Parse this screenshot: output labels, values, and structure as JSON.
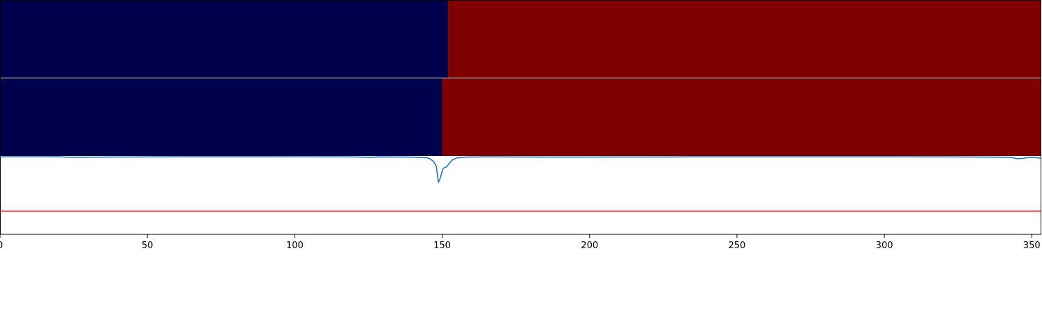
{
  "chart_data": [
    {
      "type": "heatmap",
      "row": 1,
      "x_domain": [
        0,
        353
      ],
      "segments": [
        {
          "x_start": 0,
          "x_end": 152,
          "color": "#00004c"
        },
        {
          "x_start": 152,
          "x_end": 353,
          "color": "#7f0000"
        }
      ]
    },
    {
      "type": "heatmap",
      "row": 2,
      "x_domain": [
        0,
        353
      ],
      "segments": [
        {
          "x_start": 0,
          "x_end": 150,
          "color": "#00004c"
        },
        {
          "x_start": 150,
          "x_end": 353,
          "color": "#7f0000"
        }
      ]
    },
    {
      "type": "line",
      "xlim": [
        0,
        353
      ],
      "ylim": [
        0,
        1
      ],
      "threshold": 0.3,
      "threshold_color": "#e41a1c",
      "line_color": "#1f77b4",
      "series": [
        {
          "x": [
            0,
            20,
            22,
            25,
            60,
            100,
            120,
            126,
            128,
            135,
            140,
            143,
            145,
            146,
            147,
            148,
            148.7,
            149.3,
            150.3,
            151.5,
            152.5,
            153.5,
            155,
            158,
            165,
            190,
            230,
            234,
            300,
            325,
            335,
            340,
            343,
            345,
            347,
            349,
            351,
            353
          ],
          "y": [
            1.0,
            1.0,
            0.995,
            0.993,
            0.999,
            1.0,
            0.997,
            0.992,
            0.997,
            0.996,
            0.995,
            0.99,
            0.985,
            0.97,
            0.94,
            0.88,
            0.67,
            0.72,
            0.85,
            0.87,
            0.92,
            0.96,
            0.985,
            0.995,
            0.998,
            0.995,
            0.997,
            1.0,
            1.0,
            0.997,
            0.995,
            0.994,
            0.99,
            0.975,
            0.978,
            0.992,
            0.99,
            0.98
          ]
        }
      ],
      "x_ticks": [
        "0",
        "50",
        "100",
        "150",
        "200",
        "250",
        "300",
        "350"
      ]
    }
  ]
}
